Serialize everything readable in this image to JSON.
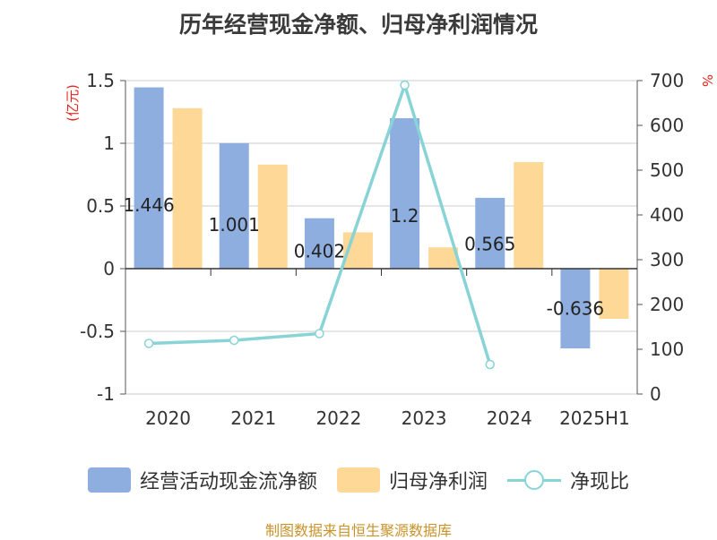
{
  "chart_data": {
    "type": "bar",
    "title": "历年经营现金净额、归母净利润情况",
    "categories": [
      "2020",
      "2021",
      "2022",
      "2023",
      "2024",
      "2025H1"
    ],
    "left_axis": {
      "unit": "(亿元)",
      "ylim": [
        -1,
        1.5
      ],
      "ticks": [
        1.5,
        1,
        0.5,
        0,
        -0.5,
        -1
      ],
      "tick_labels": [
        "1.5",
        "1",
        "0.5",
        "0",
        "-0.5",
        "-1"
      ]
    },
    "right_axis": {
      "unit": "%",
      "ylim": [
        0,
        700
      ],
      "ticks": [
        700,
        600,
        500,
        400,
        300,
        200,
        100,
        0
      ],
      "tick_labels": [
        "700",
        "600",
        "500",
        "400",
        "300",
        "200",
        "100",
        "0"
      ]
    },
    "series": [
      {
        "name": "经营活动现金流净额",
        "type": "bar",
        "axis": "left",
        "color": "#8eaee0",
        "values": [
          1.446,
          1.001,
          0.402,
          1.2,
          0.565,
          -0.636
        ],
        "labels": [
          "1.446",
          "1.001",
          "0.402",
          "1.2",
          "0.565",
          "-0.636"
        ]
      },
      {
        "name": "归母净利润",
        "type": "bar",
        "axis": "left",
        "color": "#fdd897",
        "values": [
          1.28,
          0.83,
          0.29,
          0.17,
          0.85,
          -0.4
        ]
      },
      {
        "name": "净现比",
        "type": "line",
        "axis": "right",
        "color": "#88d3d6",
        "values": [
          113,
          120,
          135,
          690,
          66,
          null
        ]
      }
    ],
    "grid": true,
    "legend_position": "bottom"
  },
  "footer": "制图数据来自恒生聚源数据库"
}
